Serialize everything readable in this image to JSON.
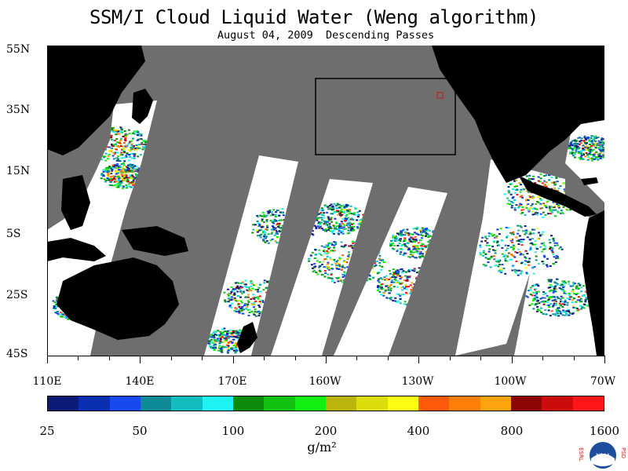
{
  "title": "SSM/I Cloud Liquid Water (Weng algorithm)",
  "subtitle": "August 04, 2009  Descending Passes",
  "map": {
    "lat_labels": [
      "55N",
      "35N",
      "15N",
      "5S",
      "25S",
      "45S"
    ],
    "lon_labels": [
      "110E",
      "140E",
      "170E",
      "160W",
      "130W",
      "100W",
      "70W"
    ],
    "lat_range": [
      -45,
      55
    ],
    "lon_range_east": [
      110,
      290
    ],
    "highlight_box": {
      "lon_w": -160,
      "lon_e": -115,
      "lat_s": 20,
      "lat_n": 45
    }
  },
  "colorbar": {
    "colors": [
      "#0d1a78",
      "#0a2fb0",
      "#1748f0",
      "#0e8a96",
      "#12bcbf",
      "#1ff2f2",
      "#0a8c0a",
      "#11c211",
      "#11f011",
      "#b9b50c",
      "#dcdc0a",
      "#fdfd13",
      "#ff5a0a",
      "#ff7f0a",
      "#ffa40e",
      "#8c0606",
      "#cc0c0c",
      "#ff1717"
    ],
    "tick_labels": [
      "25",
      "50",
      "100",
      "200",
      "400",
      "800",
      "1600"
    ],
    "units": "g/m²"
  },
  "logo": {
    "left_text": "ESRL",
    "right_text": "PSD",
    "center_text": "NOAA"
  }
}
